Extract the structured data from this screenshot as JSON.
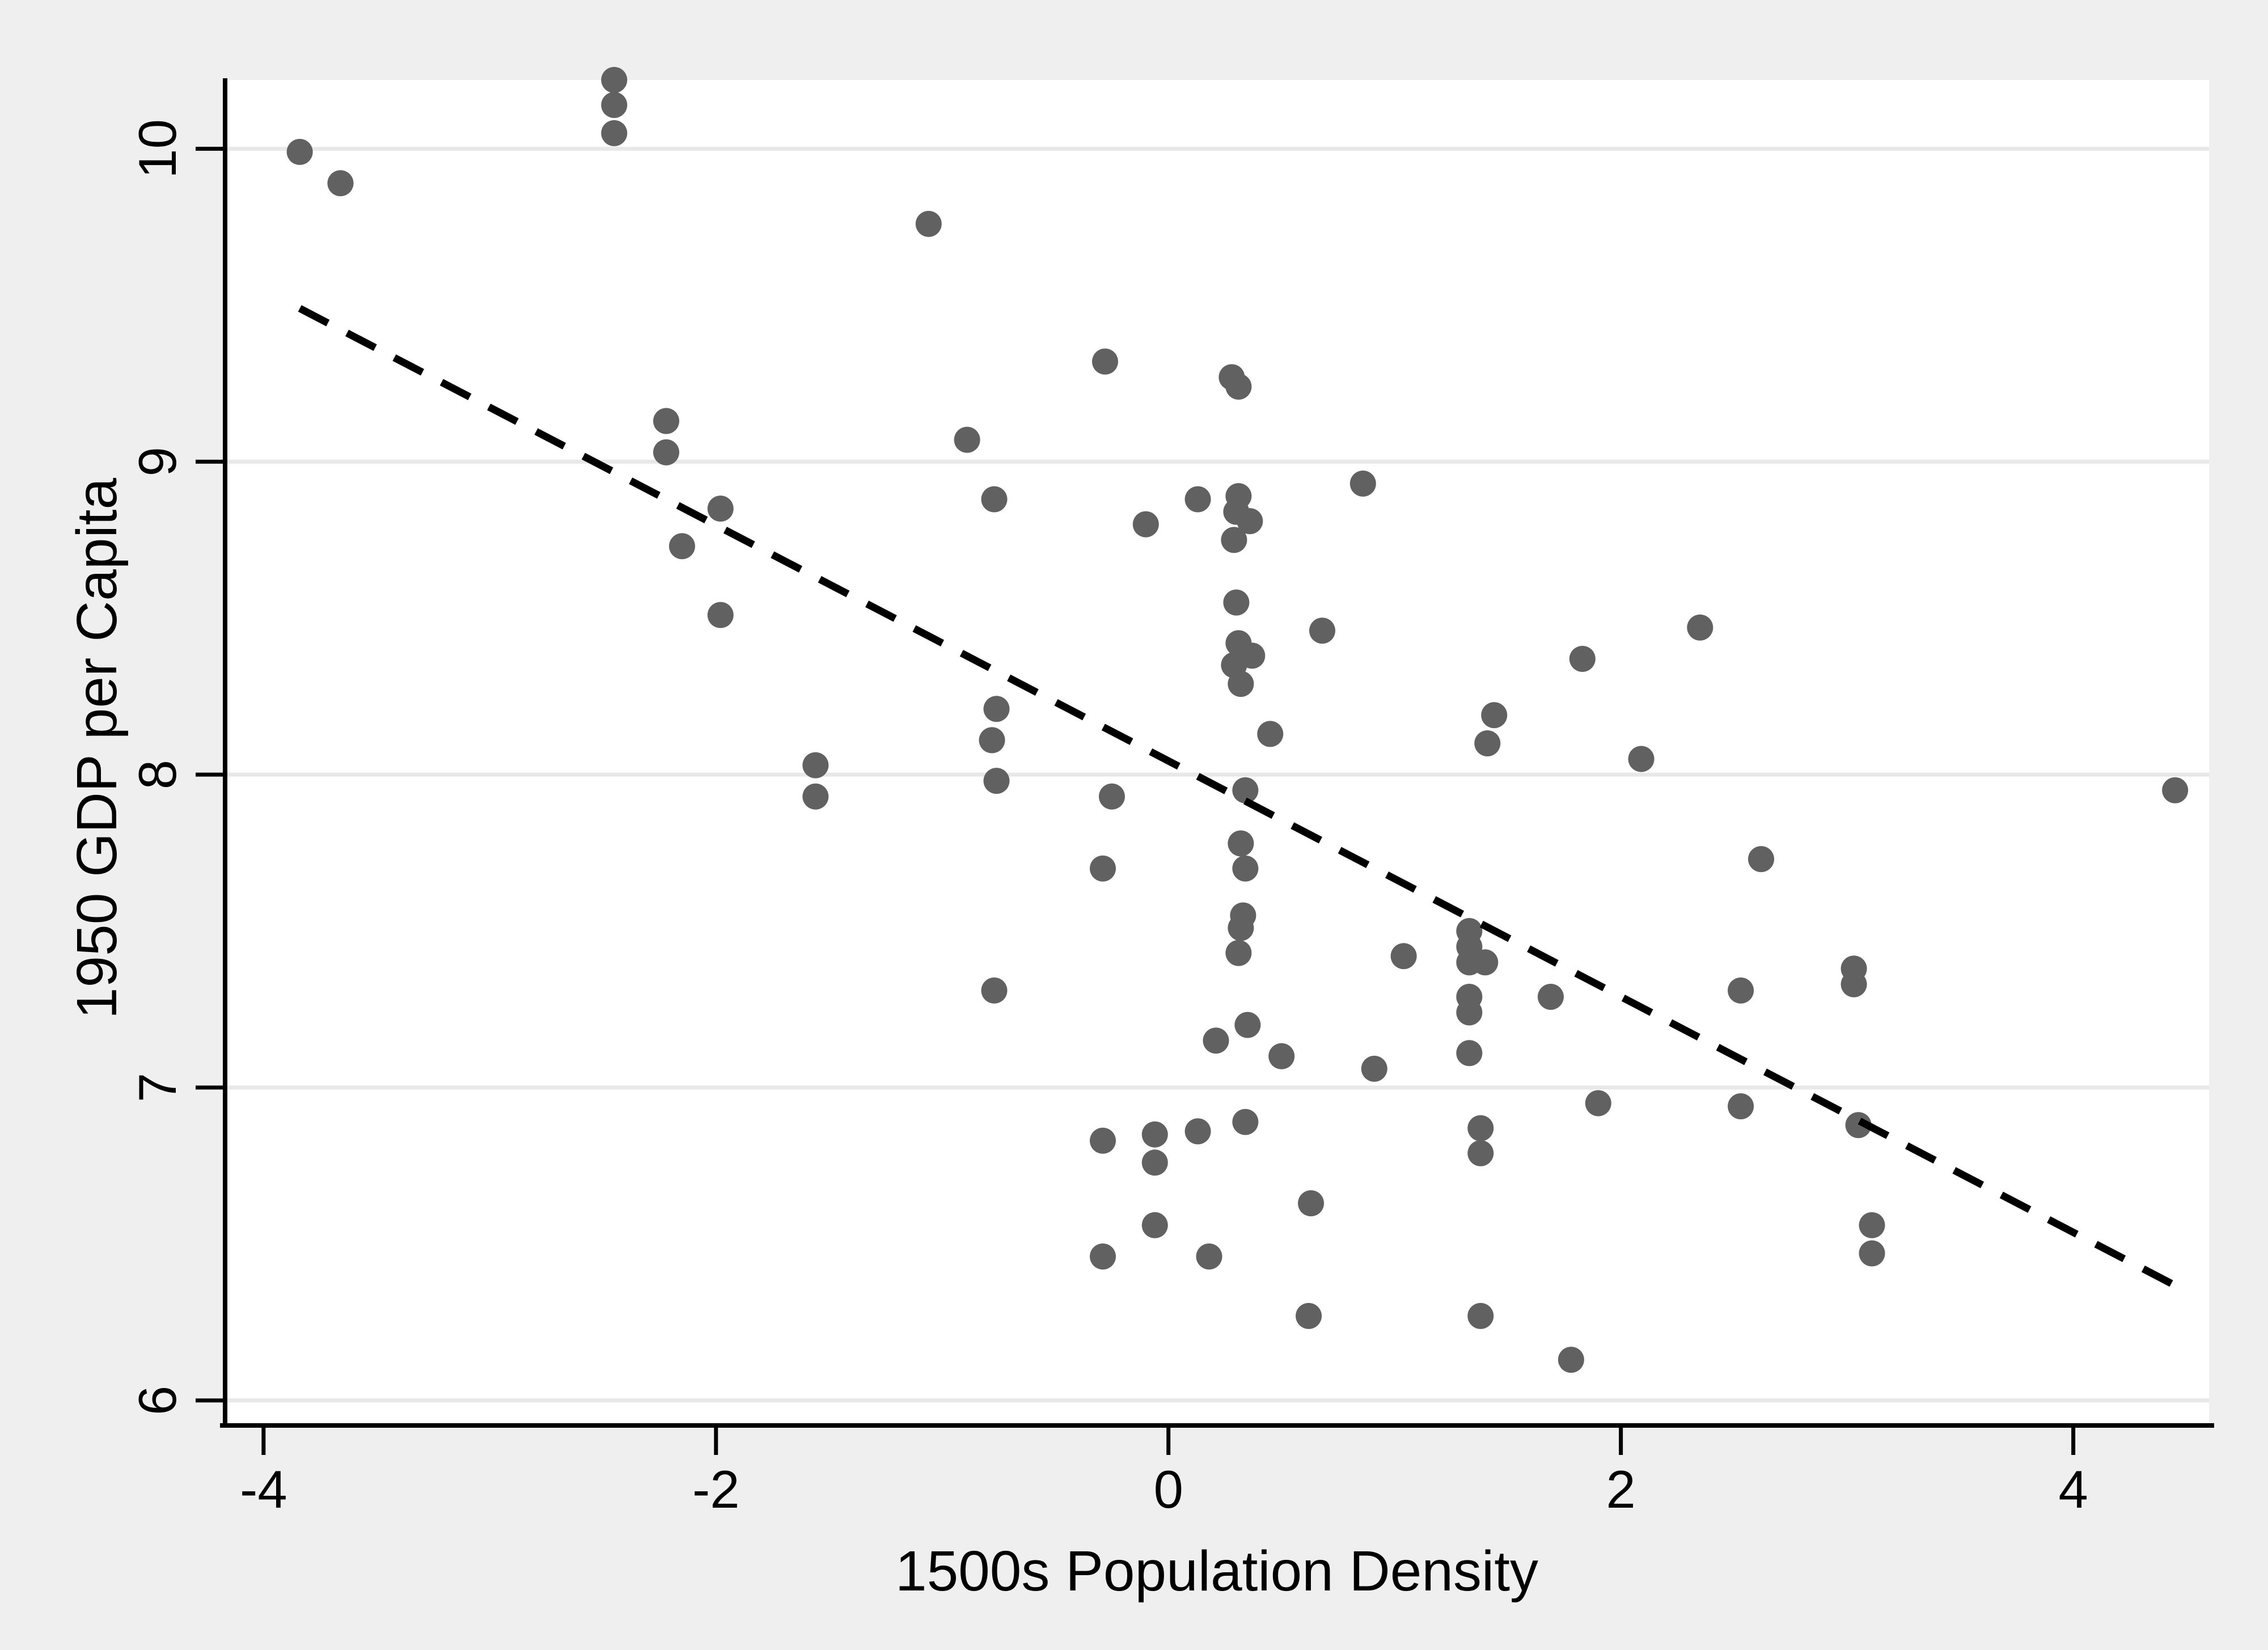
{
  "style": {
    "background_color": "#efefef",
    "plot_background_color": "#ffffff",
    "grid_color": "#e8e8e8",
    "axis_color": "#000000",
    "marker_color": "#616161",
    "trendline_color": "#000000"
  },
  "chart_data": {
    "type": "scatter",
    "title": "",
    "xlabel": "1500s Population Density",
    "ylabel": "1950 GDP per Capita",
    "xlim": [
      -4.17,
      4.6
    ],
    "ylim": [
      5.92,
      10.22
    ],
    "grid": "horizontal-only",
    "legend_position": "none",
    "x_ticks": [
      {
        "value": -4,
        "label": "-4"
      },
      {
        "value": -2,
        "label": "-2"
      },
      {
        "value": 0,
        "label": "0"
      },
      {
        "value": 2,
        "label": "2"
      },
      {
        "value": 4,
        "label": "4"
      }
    ],
    "y_ticks": [
      {
        "value": 6,
        "label": "6"
      },
      {
        "value": 7,
        "label": "7"
      },
      {
        "value": 8,
        "label": "8"
      },
      {
        "value": 9,
        "label": "9"
      },
      {
        "value": 10,
        "label": "10"
      }
    ],
    "points": [
      [
        -3.84,
        9.99
      ],
      [
        -3.66,
        9.89
      ],
      [
        -2.45,
        10.22
      ],
      [
        -2.45,
        10.14
      ],
      [
        -2.45,
        10.05
      ],
      [
        -2.22,
        9.13
      ],
      [
        -2.22,
        9.03
      ],
      [
        -2.15,
        8.73
      ],
      [
        -1.98,
        8.85
      ],
      [
        -1.98,
        8.51
      ],
      [
        -1.56,
        8.03
      ],
      [
        -1.56,
        7.93
      ],
      [
        -1.06,
        9.76
      ],
      [
        -0.89,
        9.07
      ],
      [
        -0.77,
        8.88
      ],
      [
        -0.78,
        8.11
      ],
      [
        -0.76,
        8.21
      ],
      [
        -0.76,
        7.98
      ],
      [
        -0.77,
        7.31
      ],
      [
        -0.29,
        7.7
      ],
      [
        -0.29,
        6.83
      ],
      [
        -0.29,
        6.46
      ],
      [
        -0.28,
        9.32
      ],
      [
        -0.25,
        7.93
      ],
      [
        -0.1,
        8.8
      ],
      [
        -0.06,
        6.85
      ],
      [
        -0.06,
        6.76
      ],
      [
        -0.06,
        6.56
      ],
      [
        0.13,
        8.88
      ],
      [
        0.13,
        6.86
      ],
      [
        0.18,
        6.46
      ],
      [
        0.21,
        7.15
      ],
      [
        0.28,
        9.27
      ],
      [
        0.31,
        9.24
      ],
      [
        0.31,
        8.89
      ],
      [
        0.3,
        8.84
      ],
      [
        0.36,
        8.81
      ],
      [
        0.29,
        8.75
      ],
      [
        0.3,
        8.55
      ],
      [
        0.31,
        8.42
      ],
      [
        0.37,
        8.38
      ],
      [
        0.29,
        8.35
      ],
      [
        0.32,
        8.29
      ],
      [
        0.45,
        8.13
      ],
      [
        0.34,
        7.95
      ],
      [
        0.32,
        7.78
      ],
      [
        0.34,
        7.7
      ],
      [
        0.33,
        7.55
      ],
      [
        0.32,
        7.51
      ],
      [
        0.31,
        7.43
      ],
      [
        0.35,
        7.2
      ],
      [
        0.34,
        6.89
      ],
      [
        0.5,
        7.1
      ],
      [
        0.62,
        6.27
      ],
      [
        0.63,
        6.63
      ],
      [
        0.68,
        8.46
      ],
      [
        0.86,
        8.93
      ],
      [
        0.91,
        7.06
      ],
      [
        1.04,
        7.42
      ],
      [
        1.33,
        7.5
      ],
      [
        1.33,
        7.45
      ],
      [
        1.33,
        7.4
      ],
      [
        1.4,
        7.4
      ],
      [
        1.33,
        7.29
      ],
      [
        1.33,
        7.24
      ],
      [
        1.33,
        7.11
      ],
      [
        1.38,
        6.87
      ],
      [
        1.38,
        6.79
      ],
      [
        1.38,
        6.27
      ],
      [
        1.41,
        8.1
      ],
      [
        1.44,
        8.19
      ],
      [
        1.69,
        7.29
      ],
      [
        1.78,
        6.13
      ],
      [
        1.83,
        8.37
      ],
      [
        1.9,
        6.95
      ],
      [
        2.09,
        8.05
      ],
      [
        2.35,
        8.47
      ],
      [
        2.53,
        7.31
      ],
      [
        2.53,
        6.94
      ],
      [
        2.62,
        7.73
      ],
      [
        3.03,
        7.38
      ],
      [
        3.03,
        7.33
      ],
      [
        3.05,
        6.88
      ],
      [
        3.11,
        6.56
      ],
      [
        3.11,
        6.47
      ],
      [
        4.45,
        7.95
      ]
    ],
    "trendline": {
      "style": "dashed",
      "x1": -3.84,
      "y1": 9.49,
      "x2": 4.47,
      "y2": 6.36
    }
  }
}
